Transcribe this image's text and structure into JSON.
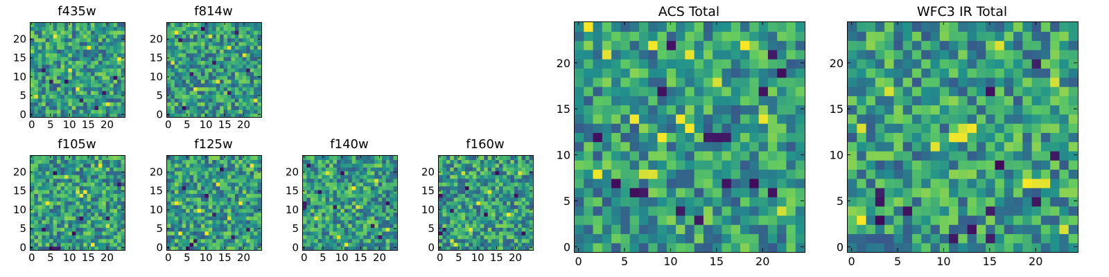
{
  "figure": {
    "background": "#ffffff",
    "colormap": "viridis",
    "colormap_stops": [
      "#440154",
      "#3b528b",
      "#21918c",
      "#5ec962",
      "#fde725"
    ]
  },
  "chart_data": [
    {
      "type": "heatmap",
      "slot": "f435w",
      "title": "f435w",
      "xlim": [
        0,
        25
      ],
      "ylim": [
        0,
        25
      ],
      "origin": "lower",
      "xticks": [
        0,
        5,
        10,
        15,
        20
      ],
      "yticks": [
        0,
        5,
        10,
        15,
        20
      ],
      "grid": false,
      "colormap": "viridis",
      "seed": 11,
      "dark_cells": [
        [
          3,
          12
        ],
        [
          5,
          9
        ],
        [
          9,
          9
        ],
        [
          13,
          4
        ],
        [
          19,
          6
        ],
        [
          22,
          10
        ],
        [
          17,
          2
        ]
      ],
      "bright_cells": [
        [
          6,
          21
        ],
        [
          10,
          12
        ],
        [
          12,
          7
        ],
        [
          15,
          18
        ],
        [
          20,
          3
        ],
        [
          1,
          5
        ],
        [
          23,
          15
        ]
      ]
    },
    {
      "type": "heatmap",
      "slot": "f814w",
      "title": "f814w",
      "xlim": [
        0,
        25
      ],
      "ylim": [
        0,
        25
      ],
      "origin": "lower",
      "xticks": [
        0,
        5,
        10,
        15,
        20
      ],
      "yticks": [
        0,
        5,
        10,
        15,
        20
      ],
      "grid": false,
      "colormap": "viridis",
      "seed": 23,
      "dark_cells": [
        [
          9,
          23
        ],
        [
          3,
          20
        ],
        [
          18,
          22
        ],
        [
          12,
          14
        ],
        [
          6,
          11
        ],
        [
          16,
          6
        ],
        [
          4,
          2
        ],
        [
          21,
          12
        ]
      ],
      "bright_cells": [
        [
          2,
          22
        ],
        [
          11,
          21
        ],
        [
          16,
          18
        ],
        [
          20,
          16
        ],
        [
          7,
          7
        ],
        [
          13,
          9
        ],
        [
          23,
          4
        ],
        [
          1,
          14
        ]
      ]
    },
    {
      "type": "heatmap",
      "slot": "f105w",
      "title": "f105w",
      "xlim": [
        0,
        25
      ],
      "ylim": [
        0,
        25
      ],
      "origin": "lower",
      "xticks": [
        0,
        5,
        10,
        15,
        20
      ],
      "yticks": [
        0,
        5,
        10,
        15,
        20
      ],
      "grid": false,
      "colormap": "viridis",
      "seed": 37,
      "dark_cells": [
        [
          3,
          5
        ],
        [
          5,
          0
        ],
        [
          6,
          0
        ],
        [
          7,
          0
        ],
        [
          11,
          4
        ],
        [
          13,
          8
        ],
        [
          20,
          8
        ],
        [
          6,
          20
        ],
        [
          23,
          17
        ]
      ],
      "bright_cells": [
        [
          12,
          15
        ],
        [
          13,
          14
        ],
        [
          14,
          15
        ],
        [
          18,
          22
        ],
        [
          9,
          19
        ],
        [
          20,
          6
        ],
        [
          16,
          1
        ],
        [
          4,
          12
        ]
      ]
    },
    {
      "type": "heatmap",
      "slot": "f125w",
      "title": "f125w",
      "xlim": [
        0,
        25
      ],
      "ylim": [
        0,
        25
      ],
      "origin": "lower",
      "xticks": [
        0,
        5,
        10,
        15,
        20
      ],
      "yticks": [
        0,
        5,
        10,
        15,
        20
      ],
      "grid": false,
      "colormap": "viridis",
      "seed": 41,
      "dark_cells": [
        [
          5,
          0
        ],
        [
          6,
          1
        ],
        [
          7,
          2
        ],
        [
          4,
          16
        ],
        [
          10,
          14
        ],
        [
          12,
          9
        ],
        [
          17,
          3
        ],
        [
          21,
          5
        ],
        [
          14,
          21
        ]
      ],
      "bright_cells": [
        [
          2,
          12
        ],
        [
          8,
          10
        ],
        [
          13,
          17
        ],
        [
          19,
          12
        ],
        [
          22,
          22
        ],
        [
          10,
          4
        ],
        [
          16,
          8
        ],
        [
          3,
          4
        ]
      ]
    },
    {
      "type": "heatmap",
      "slot": "f140w",
      "title": "f140w",
      "xlim": [
        0,
        25
      ],
      "ylim": [
        0,
        25
      ],
      "origin": "lower",
      "xticks": [
        0,
        5,
        10,
        15,
        20
      ],
      "yticks": [
        0,
        5,
        10,
        15,
        20
      ],
      "grid": false,
      "colormap": "viridis",
      "seed": 53,
      "dark_cells": [
        [
          0,
          12
        ],
        [
          0,
          11
        ],
        [
          1,
          22
        ],
        [
          4,
          15
        ],
        [
          8,
          11
        ],
        [
          18,
          6
        ],
        [
          20,
          3
        ],
        [
          22,
          12
        ],
        [
          10,
          20
        ]
      ],
      "bright_cells": [
        [
          13,
          16
        ],
        [
          3,
          8
        ],
        [
          9,
          3
        ],
        [
          14,
          11
        ],
        [
          19,
          18
        ],
        [
          6,
          20
        ],
        [
          22,
          5
        ],
        [
          11,
          1
        ]
      ]
    },
    {
      "type": "heatmap",
      "slot": "f160w",
      "title": "f160w",
      "xlim": [
        0,
        25
      ],
      "ylim": [
        0,
        25
      ],
      "origin": "lower",
      "xticks": [
        0,
        5,
        10,
        15,
        20
      ],
      "yticks": [
        0,
        5,
        10,
        15,
        20
      ],
      "grid": false,
      "colormap": "viridis",
      "seed": 67,
      "dark_cells": [
        [
          0,
          4
        ],
        [
          1,
          5
        ],
        [
          0,
          14
        ],
        [
          3,
          10
        ],
        [
          7,
          16
        ],
        [
          12,
          9
        ],
        [
          15,
          20
        ],
        [
          20,
          14
        ],
        [
          22,
          4
        ]
      ],
      "bright_cells": [
        [
          3,
          2
        ],
        [
          4,
          1
        ],
        [
          10,
          12
        ],
        [
          13,
          15
        ],
        [
          6,
          20
        ],
        [
          18,
          9
        ],
        [
          21,
          20
        ],
        [
          8,
          5
        ]
      ]
    },
    {
      "type": "heatmap",
      "slot": "acs",
      "title": "ACS Total",
      "xlim": [
        0,
        25
      ],
      "ylim": [
        0,
        25
      ],
      "origin": "lower",
      "xticks": [
        0,
        5,
        10,
        15,
        20
      ],
      "yticks": [
        0,
        5,
        10,
        15,
        20
      ],
      "grid": false,
      "colormap": "viridis",
      "seed": 79,
      "dark_cells": [
        [
          10,
          22
        ],
        [
          21,
          21
        ],
        [
          22,
          19
        ],
        [
          9,
          17
        ],
        [
          2,
          12
        ],
        [
          14,
          12
        ],
        [
          15,
          12
        ],
        [
          16,
          12
        ],
        [
          4,
          7
        ],
        [
          16,
          7
        ],
        [
          19,
          7
        ],
        [
          21,
          6
        ],
        [
          11,
          4
        ],
        [
          13,
          3
        ],
        [
          6,
          6
        ],
        [
          7,
          6
        ],
        [
          20,
          17
        ]
      ],
      "bright_cells": [
        [
          1,
          24
        ],
        [
          3,
          21
        ],
        [
          8,
          22
        ],
        [
          12,
          21
        ],
        [
          18,
          22
        ],
        [
          6,
          14
        ],
        [
          12,
          13
        ],
        [
          11,
          14
        ],
        [
          9,
          12
        ],
        [
          7,
          8
        ],
        [
          8,
          8
        ],
        [
          22,
          4
        ],
        [
          15,
          18
        ],
        [
          2,
          8
        ],
        [
          20,
          14
        ]
      ]
    },
    {
      "type": "heatmap",
      "slot": "wfc3",
      "title": "WFC3 IR Total",
      "xlim": [
        0,
        25
      ],
      "ylim": [
        0,
        25
      ],
      "origin": "lower",
      "xticks": [
        0,
        5,
        10,
        15,
        20
      ],
      "yticks": [
        0,
        5,
        10,
        15,
        20
      ],
      "grid": false,
      "colormap": "viridis",
      "seed": 97,
      "dark_cells": [
        [
          20,
          20
        ],
        [
          15,
          17
        ],
        [
          3,
          6
        ],
        [
          3,
          5
        ],
        [
          3,
          3
        ],
        [
          15,
          1
        ],
        [
          13,
          2
        ],
        [
          11,
          1
        ],
        [
          22,
          10
        ],
        [
          16,
          9
        ],
        [
          6,
          4
        ],
        [
          20,
          5
        ],
        [
          15,
          4
        ]
      ],
      "bright_cells": [
        [
          12,
          13
        ],
        [
          13,
          13
        ],
        [
          11,
          12
        ],
        [
          12,
          12
        ],
        [
          19,
          7
        ],
        [
          20,
          7
        ],
        [
          21,
          7
        ],
        [
          4,
          17
        ],
        [
          9,
          11
        ],
        [
          1,
          3
        ],
        [
          23,
          2
        ],
        [
          22,
          18
        ],
        [
          16,
          22
        ],
        [
          1,
          13
        ]
      ]
    }
  ]
}
